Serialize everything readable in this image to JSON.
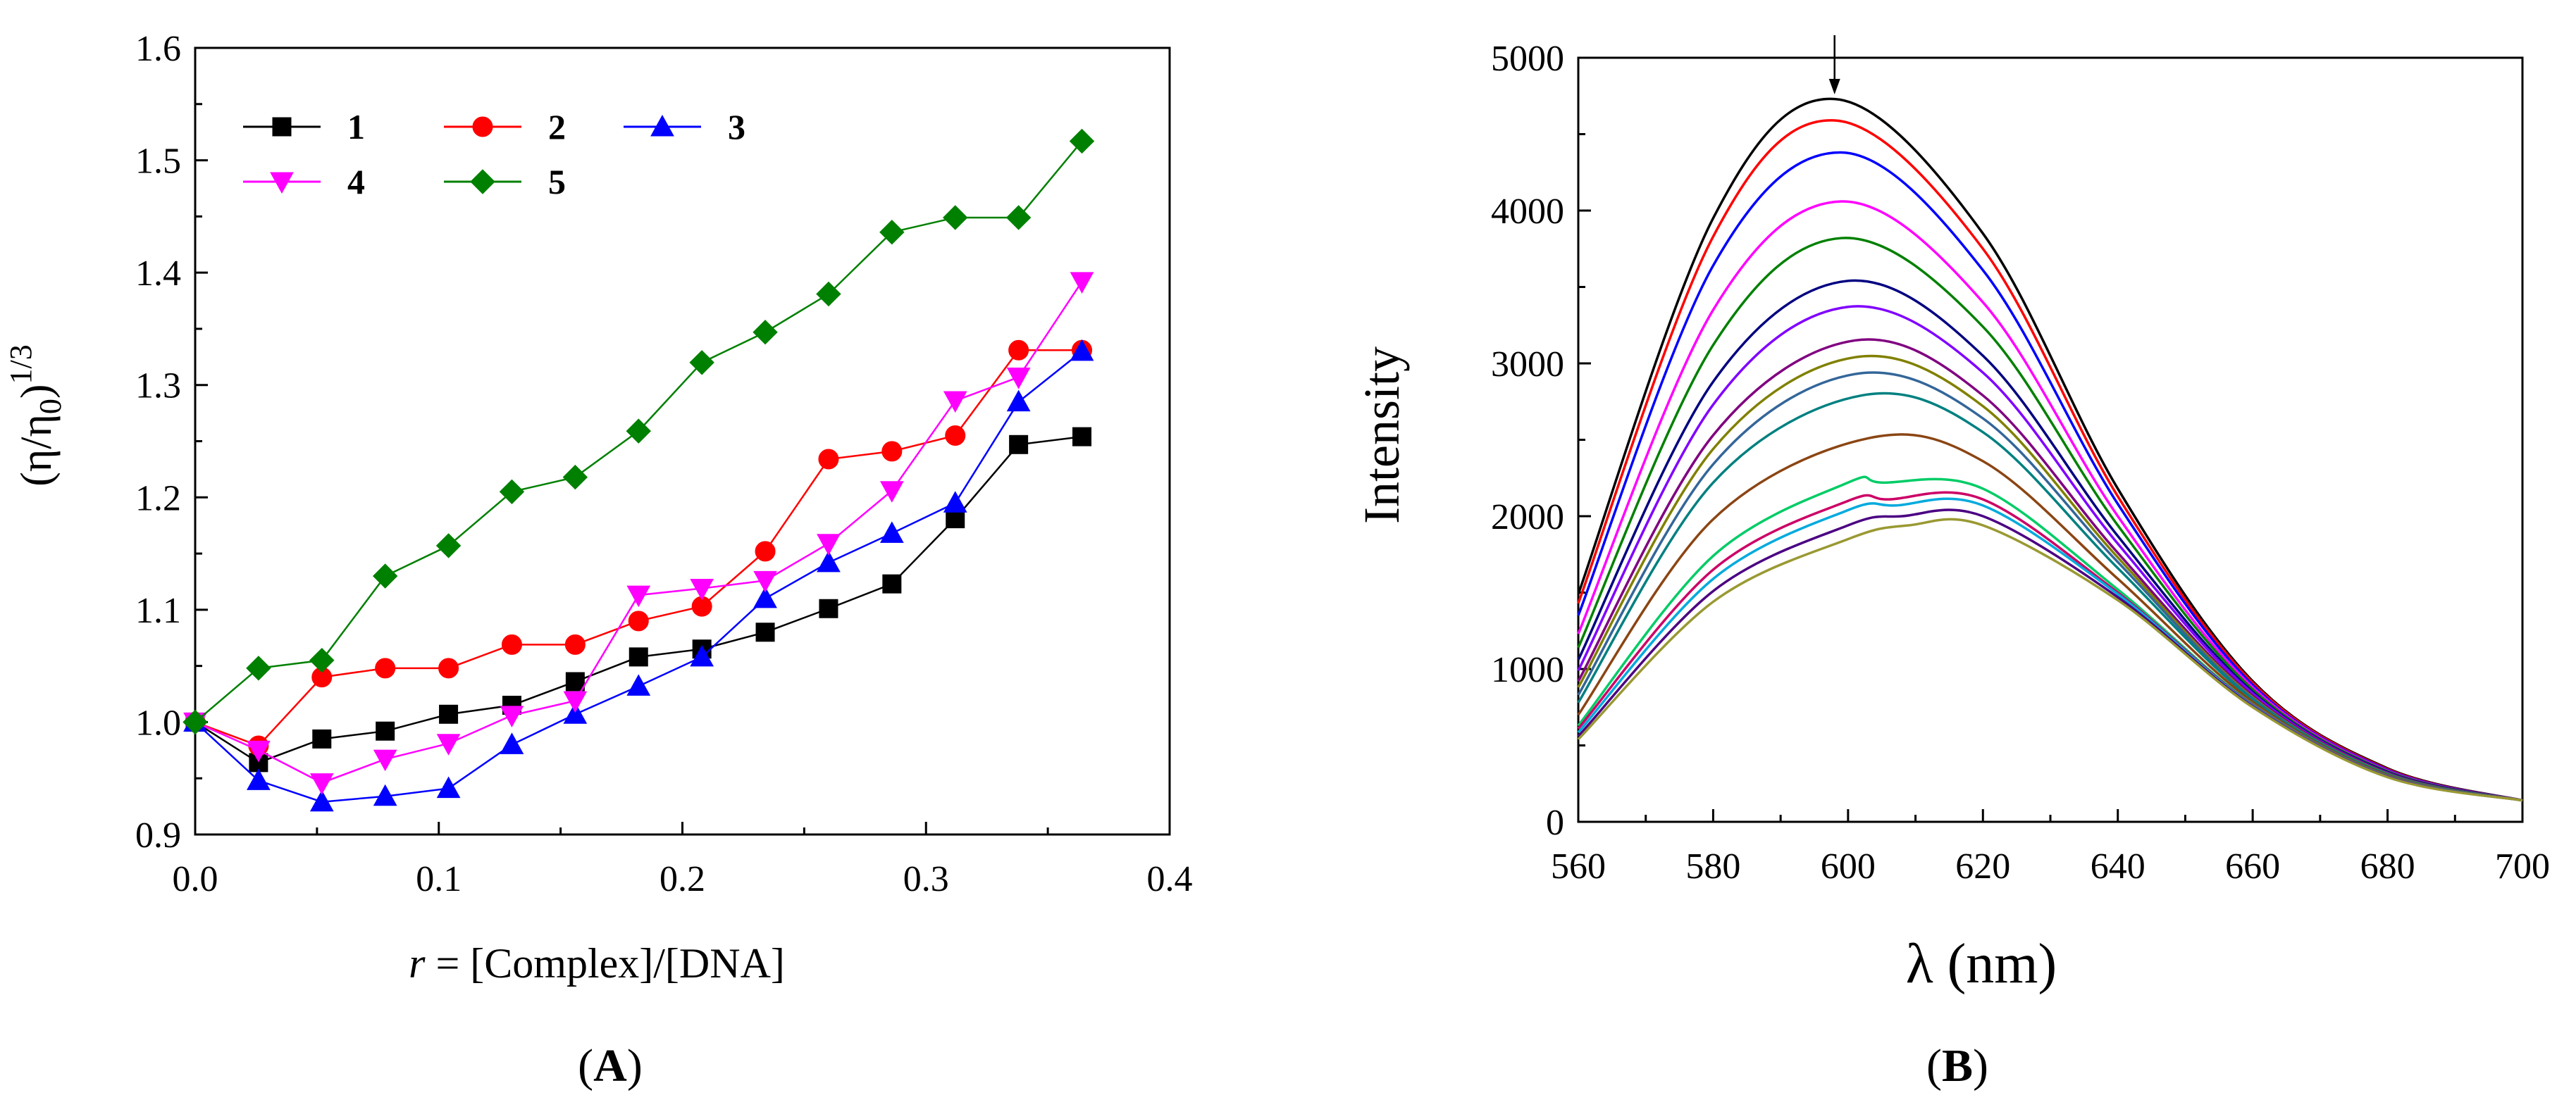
{
  "chart_data": [
    {
      "type": "line",
      "panel_label": "A",
      "xlabel_italic": "r",
      "xlabel_rest": " = [Complex]/[DNA]",
      "ylabel_main": "(η/η",
      "ylabel_sub": "0",
      "ylabel_close": ")",
      "ylabel_sup": "1/3",
      "xlim": [
        0.0,
        0.4
      ],
      "ylim": [
        0.9,
        1.6
      ],
      "x_ticks": [
        0.0,
        0.1,
        0.2,
        0.3,
        0.4
      ],
      "y_ticks": [
        0.9,
        1.0,
        1.1,
        1.2,
        1.3,
        1.4,
        1.5,
        1.6
      ],
      "x_tick_labels": [
        "0.0",
        "0.1",
        "0.2",
        "0.3",
        "0.4"
      ],
      "y_tick_labels": [
        "0.9",
        "1.0",
        "1.1",
        "1.2",
        "1.3",
        "1.4",
        "1.5",
        "1.6"
      ],
      "series": [
        {
          "name": "1",
          "color": "#000000",
          "marker": "square",
          "x": [
            0,
            0.026,
            0.052,
            0.078,
            0.104,
            0.13,
            0.156,
            0.182,
            0.208,
            0.234,
            0.26,
            0.286,
            0.312,
            0.338,
            0.364
          ],
          "y": [
            1.0,
            0.964,
            0.985,
            0.992,
            1.007,
            1.015,
            1.036,
            1.058,
            1.065,
            1.08,
            1.101,
            1.123,
            1.181,
            1.247,
            1.254
          ]
        },
        {
          "name": "2",
          "color": "#ff0000",
          "marker": "circle",
          "x": [
            0,
            0.026,
            0.052,
            0.078,
            0.104,
            0.13,
            0.156,
            0.182,
            0.208,
            0.234,
            0.26,
            0.286,
            0.312,
            0.338,
            0.364
          ],
          "y": [
            1.0,
            0.979,
            1.04,
            1.048,
            1.048,
            1.069,
            1.069,
            1.09,
            1.103,
            1.152,
            1.234,
            1.241,
            1.255,
            1.331,
            1.331
          ]
        },
        {
          "name": "3",
          "color": "#0000ff",
          "marker": "triangle-up",
          "x": [
            0,
            0.026,
            0.052,
            0.078,
            0.104,
            0.13,
            0.156,
            0.182,
            0.208,
            0.234,
            0.26,
            0.286,
            0.312,
            0.338,
            0.364
          ],
          "y": [
            1.0,
            0.948,
            0.929,
            0.934,
            0.941,
            0.98,
            1.007,
            1.032,
            1.058,
            1.11,
            1.142,
            1.168,
            1.195,
            1.285,
            1.33
          ]
        },
        {
          "name": "4",
          "color": "#ff00ff",
          "marker": "triangle-down",
          "x": [
            0,
            0.026,
            0.052,
            0.078,
            0.104,
            0.13,
            0.156,
            0.182,
            0.208,
            0.234,
            0.26,
            0.286,
            0.312,
            0.338,
            0.364
          ],
          "y": [
            1.0,
            0.975,
            0.946,
            0.967,
            0.981,
            1.006,
            1.019,
            1.113,
            1.119,
            1.126,
            1.159,
            1.206,
            1.286,
            1.307,
            1.392
          ]
        },
        {
          "name": "5",
          "color": "#008000",
          "marker": "diamond",
          "x": [
            0,
            0.026,
            0.052,
            0.078,
            0.104,
            0.13,
            0.156,
            0.182,
            0.208,
            0.234,
            0.26,
            0.286,
            0.312,
            0.338,
            0.364
          ],
          "y": [
            1.0,
            1.048,
            1.055,
            1.13,
            1.157,
            1.205,
            1.218,
            1.259,
            1.32,
            1.347,
            1.381,
            1.436,
            1.449,
            1.449,
            1.517
          ]
        }
      ]
    },
    {
      "type": "line",
      "panel_label": "B",
      "xlabel": "λ (nm)",
      "ylabel": "Intensity",
      "xlim": [
        560,
        700
      ],
      "ylim": [
        0,
        5000
      ],
      "x_ticks": [
        560,
        580,
        600,
        620,
        640,
        660,
        680,
        700
      ],
      "y_ticks": [
        0,
        1000,
        2000,
        3000,
        4000,
        5000
      ],
      "x_tick_labels": [
        "560",
        "580",
        "600",
        "620",
        "640",
        "660",
        "680",
        "700"
      ],
      "y_tick_labels": [
        "0",
        "1000",
        "2000",
        "3000",
        "4000",
        "5000"
      ],
      "arrow_at_x": 598,
      "curve_x": [
        560,
        580,
        600,
        620,
        640,
        660,
        680,
        700
      ],
      "series": [
        {
          "color": "#000000",
          "peak_x": 598,
          "y": [
            1490,
            3950,
            4730,
            3850,
            2180,
            920,
            350,
            140
          ]
        },
        {
          "color": "#ff0000",
          "peak_x": 598,
          "y": [
            1430,
            3830,
            4590,
            3750,
            2130,
            910,
            345,
            140
          ]
        },
        {
          "color": "#0000ff",
          "peak_x": 599,
          "y": [
            1350,
            3640,
            4380,
            3610,
            2080,
            895,
            340,
            140
          ]
        },
        {
          "color": "#ff00ff",
          "peak_x": 599,
          "y": [
            1230,
            3350,
            4060,
            3400,
            2000,
            880,
            335,
            140
          ]
        },
        {
          "color": "#008000",
          "peak_x": 599,
          "y": [
            1140,
            3120,
            3820,
            3240,
            1940,
            865,
            330,
            140
          ]
        },
        {
          "color": "#000080",
          "peak_x": 600,
          "y": [
            1060,
            2880,
            3540,
            3050,
            1870,
            850,
            325,
            140
          ]
        },
        {
          "color": "#8000ff",
          "peak_x": 600,
          "y": [
            990,
            2730,
            3370,
            2940,
            1820,
            840,
            320,
            140
          ]
        },
        {
          "color": "#800080",
          "peak_x": 601,
          "y": [
            920,
            2530,
            3150,
            2790,
            1760,
            825,
            318,
            140
          ]
        },
        {
          "color": "#808000",
          "peak_x": 601,
          "y": [
            880,
            2440,
            3040,
            2720,
            1730,
            815,
            315,
            140
          ]
        },
        {
          "color": "#336699",
          "peak_x": 601,
          "y": [
            830,
            2340,
            2930,
            2640,
            1700,
            808,
            312,
            140
          ]
        },
        {
          "color": "#008080",
          "peak_x": 602,
          "y": [
            780,
            2220,
            2790,
            2550,
            1660,
            800,
            310,
            140
          ]
        },
        {
          "color": "#8b4513",
          "peak_x": 603,
          "y": [
            700,
            1980,
            2510,
            2360,
            1590,
            785,
            305,
            140
          ]
        },
        {
          "color": "#00cc66",
          "peak_x": 605,
          "y": [
            630,
            1740,
            2220,
            2180,
            1520,
            770,
            300,
            140
          ]
        },
        {
          "color": "#cc0066",
          "peak_x": 606,
          "y": [
            610,
            1650,
            2100,
            2110,
            1500,
            765,
            298,
            140
          ]
        },
        {
          "color": "#00aadd",
          "peak_x": 607,
          "y": [
            585,
            1590,
            2040,
            2070,
            1490,
            760,
            296,
            140
          ]
        },
        {
          "color": "#4b0082",
          "peak_x": 608,
          "y": [
            560,
            1510,
            1940,
            2000,
            1470,
            755,
            294,
            140
          ]
        },
        {
          "color": "#999933",
          "peak_x": 609,
          "y": [
            540,
            1440,
            1850,
            1940,
            1450,
            750,
            292,
            140
          ]
        }
      ]
    }
  ]
}
